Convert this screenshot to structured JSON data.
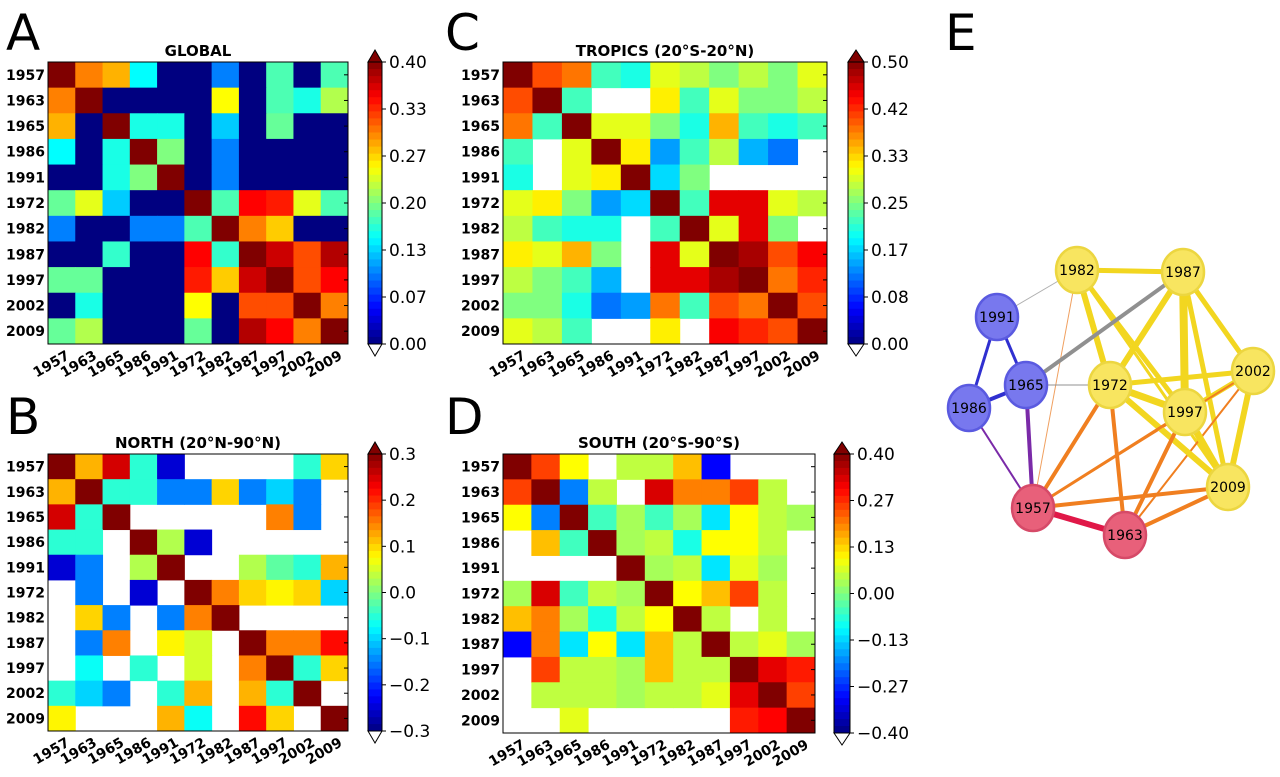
{
  "panel_letters": [
    "A",
    "B",
    "C",
    "D",
    "E"
  ],
  "chart_data": [
    {
      "type": "heatmap",
      "panel": "A",
      "title": "GLOBAL",
      "labels": [
        "1957",
        "1963",
        "1965",
        "1986",
        "1991",
        "1972",
        "1982",
        "1987",
        "1997",
        "2002",
        "2009"
      ],
      "vmin": 0.0,
      "vmax": 0.4,
      "colorbar_ticks": [
        "0.40",
        "0.33",
        "0.27",
        "0.20",
        "0.13",
        "0.07",
        "0.00"
      ],
      "matrix": [
        [
          0.4,
          0.3,
          0.28,
          0.15,
          0.0,
          0.0,
          0.1,
          0.0,
          0.18,
          0.0,
          0.18
        ],
        [
          0.3,
          0.4,
          0.0,
          0.0,
          0.0,
          0.0,
          0.25,
          0.0,
          0.18,
          0.16,
          0.22
        ],
        [
          0.28,
          0.0,
          0.4,
          0.16,
          0.16,
          0.0,
          0.13,
          0.0,
          0.19,
          0.0,
          0.0
        ],
        [
          0.15,
          0.0,
          0.16,
          0.4,
          0.2,
          0.0,
          0.1,
          0.0,
          0.0,
          0.0,
          0.0
        ],
        [
          0.0,
          0.0,
          0.16,
          0.2,
          0.4,
          0.0,
          0.1,
          0.0,
          0.0,
          0.0,
          0.0
        ],
        [
          0.19,
          0.24,
          0.13,
          0.0,
          0.0,
          0.4,
          0.18,
          0.35,
          0.34,
          0.24,
          0.18
        ],
        [
          0.1,
          0.0,
          0.0,
          0.1,
          0.1,
          0.18,
          0.4,
          0.3,
          0.27,
          0.0,
          0.0
        ],
        [
          0.0,
          0.0,
          0.17,
          0.0,
          0.0,
          0.35,
          0.17,
          0.4,
          0.37,
          0.32,
          0.38
        ],
        [
          0.19,
          0.19,
          0.0,
          0.0,
          0.0,
          0.34,
          0.27,
          0.37,
          0.4,
          0.32,
          0.35
        ],
        [
          0.0,
          0.16,
          0.0,
          0.0,
          0.0,
          0.25,
          0.0,
          0.32,
          0.32,
          0.4,
          0.3
        ],
        [
          0.19,
          0.22,
          0.0,
          0.0,
          0.0,
          0.19,
          0.0,
          0.38,
          0.35,
          0.3,
          0.4
        ]
      ]
    },
    {
      "type": "heatmap",
      "panel": "B",
      "title": "NORTH (20°N-90°N)",
      "labels": [
        "1957",
        "1963",
        "1965",
        "1986",
        "1991",
        "1972",
        "1982",
        "1987",
        "1997",
        "2002",
        "2009"
      ],
      "vmin": -0.3,
      "vmax": 0.3,
      "colorbar_ticks": [
        "0.3",
        "0.2",
        "0.1",
        "0.0",
        "−0.1",
        "−0.2",
        "−0.3"
      ],
      "matrix": [
        [
          0.3,
          0.12,
          0.25,
          -0.05,
          -0.25,
          null,
          null,
          null,
          null,
          -0.05,
          0.1
        ],
        [
          0.12,
          0.3,
          -0.05,
          -0.05,
          -0.15,
          -0.15,
          0.1,
          -0.15,
          -0.1,
          -0.15,
          null
        ],
        [
          0.25,
          -0.05,
          0.3,
          null,
          null,
          null,
          null,
          null,
          0.15,
          -0.15,
          null
        ],
        [
          -0.05,
          -0.05,
          null,
          0.3,
          0.03,
          -0.25,
          null,
          null,
          null,
          null,
          null
        ],
        [
          -0.25,
          -0.15,
          null,
          0.03,
          0.3,
          null,
          null,
          0.03,
          -0.02,
          -0.05,
          0.12
        ],
        [
          null,
          -0.15,
          null,
          -0.25,
          null,
          0.3,
          0.15,
          0.1,
          0.08,
          0.1,
          -0.1
        ],
        [
          null,
          0.1,
          -0.15,
          null,
          -0.15,
          0.15,
          0.3,
          null,
          null,
          null,
          null
        ],
        [
          null,
          -0.15,
          0.15,
          null,
          0.08,
          0.05,
          null,
          0.3,
          0.15,
          0.15,
          0.22
        ],
        [
          null,
          -0.07,
          null,
          -0.05,
          null,
          0.05,
          null,
          0.15,
          0.3,
          -0.05,
          0.1
        ],
        [
          -0.05,
          -0.1,
          -0.15,
          null,
          -0.05,
          0.12,
          null,
          0.12,
          -0.05,
          0.3,
          null
        ],
        [
          0.08,
          null,
          null,
          null,
          0.12,
          -0.07,
          null,
          0.22,
          0.1,
          null,
          0.3
        ]
      ]
    },
    {
      "type": "heatmap",
      "panel": "C",
      "title": "TROPICS (20°S-20°N)",
      "labels": [
        "1957",
        "1963",
        "1965",
        "1986",
        "1991",
        "1972",
        "1982",
        "1987",
        "1997",
        "2002",
        "2009"
      ],
      "vmin": 0.0,
      "vmax": 0.5,
      "colorbar_ticks": [
        "0.50",
        "0.42",
        "0.33",
        "0.25",
        "0.17",
        "0.08",
        "0.00"
      ],
      "matrix": [
        [
          0.5,
          0.4,
          0.38,
          0.22,
          0.2,
          0.3,
          0.28,
          0.25,
          0.28,
          0.25,
          0.3
        ],
        [
          0.4,
          0.5,
          0.22,
          null,
          null,
          0.32,
          0.22,
          0.3,
          0.25,
          0.25,
          0.28
        ],
        [
          0.38,
          0.22,
          0.5,
          0.3,
          0.3,
          0.25,
          0.2,
          0.35,
          0.22,
          0.2,
          0.22
        ],
        [
          0.22,
          null,
          0.3,
          0.5,
          0.32,
          0.14,
          0.22,
          0.28,
          0.15,
          0.12,
          null
        ],
        [
          0.2,
          null,
          0.3,
          0.32,
          0.5,
          0.17,
          0.25,
          null,
          null,
          null,
          null
        ],
        [
          0.3,
          0.32,
          0.25,
          0.14,
          0.17,
          0.5,
          0.22,
          0.45,
          0.45,
          0.3,
          0.28
        ],
        [
          0.28,
          0.22,
          0.2,
          0.2,
          null,
          0.22,
          0.5,
          0.3,
          0.45,
          0.25,
          null
        ],
        [
          0.32,
          0.3,
          0.35,
          0.25,
          null,
          0.45,
          0.3,
          0.5,
          0.48,
          0.4,
          0.44
        ],
        [
          0.28,
          0.25,
          0.22,
          0.15,
          null,
          0.45,
          0.45,
          0.48,
          0.5,
          0.38,
          0.42
        ],
        [
          0.25,
          0.25,
          0.2,
          0.12,
          0.14,
          0.38,
          0.22,
          0.4,
          0.38,
          0.5,
          0.4
        ],
        [
          0.3,
          0.28,
          0.22,
          null,
          null,
          0.32,
          null,
          0.44,
          0.42,
          0.4,
          0.5
        ]
      ]
    },
    {
      "type": "heatmap",
      "panel": "D",
      "title": "SOUTH (20°S-90°S)",
      "labels": [
        "1957",
        "1963",
        "1965",
        "1986",
        "1991",
        "1972",
        "1982",
        "1987",
        "1997",
        "2002",
        "2009"
      ],
      "vmin": -0.4,
      "vmax": 0.4,
      "colorbar_ticks": [
        "0.40",
        "0.27",
        "0.13",
        "0.00",
        "−0.13",
        "−0.27",
        "−0.40"
      ],
      "matrix": [
        [
          0.4,
          0.25,
          0.1,
          null,
          0.05,
          0.05,
          0.15,
          -0.3,
          null,
          null,
          null
        ],
        [
          0.25,
          0.4,
          -0.2,
          0.05,
          null,
          0.33,
          0.2,
          0.2,
          0.25,
          0.05,
          null
        ],
        [
          0.1,
          -0.2,
          0.4,
          -0.05,
          0.03,
          -0.05,
          0.03,
          -0.12,
          0.1,
          0.05,
          0.03
        ],
        [
          null,
          0.15,
          -0.05,
          0.4,
          0.03,
          0.05,
          -0.08,
          0.1,
          0.1,
          0.05,
          null
        ],
        [
          null,
          null,
          null,
          null,
          0.4,
          0.03,
          0.05,
          -0.12,
          0.08,
          0.03,
          null
        ],
        [
          0.03,
          0.33,
          -0.05,
          0.05,
          0.03,
          0.4,
          0.1,
          0.15,
          0.25,
          0.05,
          null
        ],
        [
          0.15,
          0.2,
          0.03,
          -0.08,
          0.05,
          0.1,
          0.4,
          0.05,
          null,
          0.05,
          null
        ],
        [
          -0.3,
          0.2,
          -0.12,
          0.1,
          -0.12,
          0.15,
          0.05,
          0.4,
          0.05,
          0.08,
          0.03
        ],
        [
          null,
          0.25,
          0.05,
          0.05,
          0.03,
          0.15,
          0.05,
          0.05,
          0.4,
          0.32,
          0.28
        ],
        [
          null,
          0.05,
          0.05,
          0.05,
          0.03,
          0.05,
          0.05,
          0.08,
          0.32,
          0.4,
          0.25
        ],
        [
          null,
          null,
          0.08,
          null,
          null,
          null,
          null,
          null,
          0.28,
          0.3,
          0.4
        ]
      ]
    }
  ],
  "network": {
    "panel": "E",
    "nodes": [
      {
        "label": "1982",
        "group": "yellow"
      },
      {
        "label": "1987",
        "group": "yellow"
      },
      {
        "label": "1991",
        "group": "blue"
      },
      {
        "label": "2002",
        "group": "yellow"
      },
      {
        "label": "1965",
        "group": "blue"
      },
      {
        "label": "1972",
        "group": "yellow"
      },
      {
        "label": "1986",
        "group": "blue"
      },
      {
        "label": "1997",
        "group": "yellow"
      },
      {
        "label": "2009",
        "group": "yellow"
      },
      {
        "label": "1957",
        "group": "red"
      },
      {
        "label": "1963",
        "group": "red"
      }
    ],
    "colors": {
      "yellow": "#f8e560",
      "blue": "#7878ee",
      "red": "#e8607a"
    },
    "edges": [
      [
        "1982",
        "1987",
        "#f2d620",
        5
      ],
      [
        "1982",
        "1972",
        "#f2d620",
        6
      ],
      [
        "1982",
        "1997",
        "#f2d620",
        5
      ],
      [
        "1982",
        "2009",
        "#f2d620",
        3
      ],
      [
        "1982",
        "1991",
        "#b0b0b0",
        1
      ],
      [
        "1982",
        "1957",
        "#f0a060",
        1
      ],
      [
        "1987",
        "1972",
        "#f2d620",
        6
      ],
      [
        "1987",
        "1997",
        "#f2d620",
        8
      ],
      [
        "1987",
        "2002",
        "#f2d620",
        5
      ],
      [
        "1987",
        "2009",
        "#f2d620",
        5
      ],
      [
        "1987",
        "1965",
        "#909090",
        4
      ],
      [
        "2002",
        "1972",
        "#f2d620",
        5
      ],
      [
        "2002",
        "1997",
        "#f2d620",
        5
      ],
      [
        "2002",
        "2009",
        "#f2d620",
        6
      ],
      [
        "2002",
        "1957",
        "#f07f20",
        2
      ],
      [
        "2002",
        "1963",
        "#f07f20",
        2
      ],
      [
        "1972",
        "1997",
        "#f2d620",
        7
      ],
      [
        "1972",
        "2009",
        "#f2d620",
        6
      ],
      [
        "1972",
        "1965",
        "#909090",
        1
      ],
      [
        "1972",
        "1957",
        "#f07f20",
        4
      ],
      [
        "1972",
        "1963",
        "#f07f20",
        4
      ],
      [
        "1997",
        "2009",
        "#f2d620",
        7
      ],
      [
        "1997",
        "1957",
        "#f07f20",
        3
      ],
      [
        "1997",
        "1963",
        "#f07f20",
        4
      ],
      [
        "2009",
        "1957",
        "#f07f20",
        4
      ],
      [
        "2009",
        "1963",
        "#f07f20",
        4
      ],
      [
        "1991",
        "1965",
        "#3030d0",
        3
      ],
      [
        "1991",
        "1986",
        "#3030d0",
        3
      ],
      [
        "1986",
        "1965",
        "#3030d0",
        4
      ],
      [
        "1986",
        "1957",
        "#7a2aa8",
        2
      ],
      [
        "1965",
        "1957",
        "#7a2aa8",
        4
      ],
      [
        "1957",
        "1963",
        "#e01848",
        6
      ]
    ]
  }
}
